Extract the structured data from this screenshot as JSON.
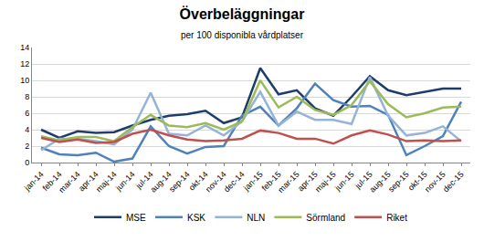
{
  "chart_data": {
    "type": "line",
    "title": "Överbeläggningar",
    "subtitle": "per 100 disponibla vårdplatser",
    "categories": [
      "jan-14",
      "feb-14",
      "mar-14",
      "apr-14",
      "maj-14",
      "jun-14",
      "jul-14",
      "aug-14",
      "sep-14",
      "okt-14",
      "nov-14",
      "dec-14",
      "jan-15",
      "feb-15",
      "mar-15",
      "apr-15",
      "maj-15",
      "jun-15",
      "jul-15",
      "aug-15",
      "sep-15",
      "okt-15",
      "nov-15",
      "dec-15"
    ],
    "series": [
      {
        "name": "MSE",
        "color": "#1f3d6b",
        "values": [
          4.0,
          3.0,
          3.8,
          3.6,
          3.7,
          4.5,
          5.2,
          5.7,
          5.9,
          6.3,
          4.8,
          5.5,
          11.5,
          8.3,
          8.8,
          6.6,
          5.7,
          8.0,
          10.5,
          8.8,
          8.2,
          8.6,
          9.0,
          9.0
        ]
      },
      {
        "name": "KSK",
        "color": "#4f81bd",
        "values": [
          1.8,
          1.0,
          0.9,
          1.2,
          0.1,
          0.5,
          4.4,
          2.0,
          1.1,
          1.9,
          2.0,
          5.7,
          6.8,
          4.5,
          6.6,
          9.6,
          7.6,
          6.8,
          6.9,
          5.8,
          0.9,
          2.0,
          3.2,
          7.4
        ]
      },
      {
        "name": "NLN",
        "color": "#95b3d7",
        "values": [
          1.5,
          2.9,
          2.9,
          2.6,
          2.2,
          4.0,
          8.5,
          3.5,
          3.3,
          4.5,
          3.3,
          5.0,
          8.6,
          4.5,
          6.2,
          5.2,
          5.2,
          4.7,
          10.4,
          5.7,
          3.3,
          3.6,
          4.4,
          2.6
        ]
      },
      {
        "name": "Sörmland",
        "color": "#9bbb59",
        "values": [
          3.2,
          2.7,
          3.1,
          3.1,
          2.6,
          4.3,
          5.8,
          4.5,
          4.3,
          4.8,
          4.0,
          5.0,
          10.0,
          6.7,
          8.0,
          6.4,
          5.8,
          7.0,
          9.9,
          7.1,
          5.5,
          6.0,
          6.7,
          6.8
        ]
      },
      {
        "name": "Riket",
        "color": "#c0504d",
        "values": [
          3.0,
          2.5,
          2.8,
          2.4,
          2.5,
          3.5,
          4.0,
          3.3,
          2.8,
          2.6,
          2.7,
          2.9,
          3.9,
          3.6,
          2.9,
          2.9,
          2.3,
          3.3,
          3.9,
          3.4,
          2.6,
          2.7,
          2.6,
          2.7
        ]
      }
    ],
    "ylim": [
      0,
      14
    ],
    "yticks": [
      0,
      2,
      4,
      6,
      8,
      10,
      12,
      14
    ],
    "grid": true,
    "legend": "bottom"
  }
}
